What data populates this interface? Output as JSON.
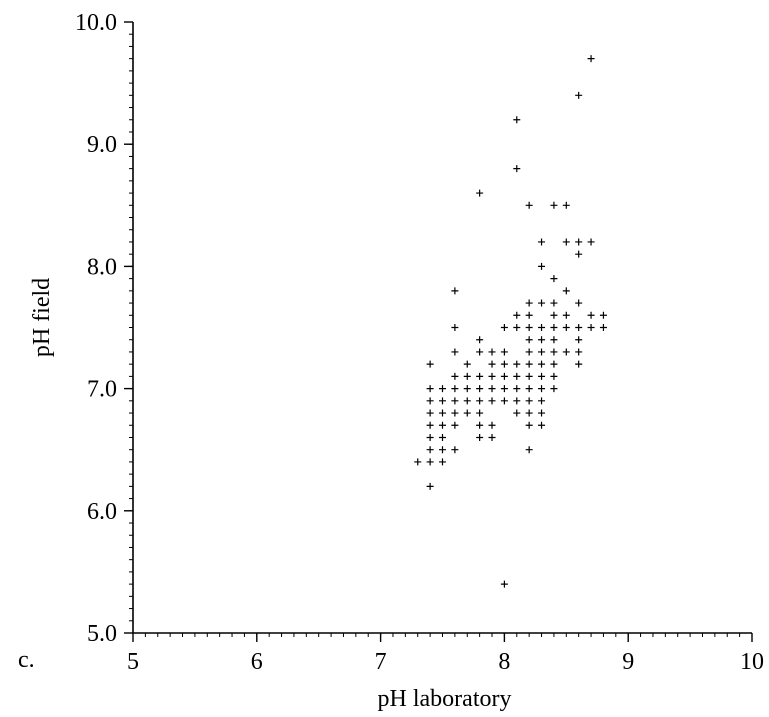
{
  "panel_label": "c.",
  "chart_data": {
    "type": "scatter",
    "xlabel": "pH laboratory",
    "ylabel": "pH field",
    "xlim": [
      5,
      10
    ],
    "ylim": [
      5.0,
      10.0
    ],
    "x_ticks": [
      5,
      6,
      7,
      8,
      9,
      10
    ],
    "x_tick_labels": [
      "5",
      "6",
      "7",
      "8",
      "9",
      "10"
    ],
    "y_ticks": [
      5.0,
      6.0,
      7.0,
      8.0,
      9.0,
      10.0
    ],
    "y_tick_labels": [
      "5.0",
      "6.0",
      "7.0",
      "8.0",
      "9.0",
      "10.0"
    ],
    "x_minor_step": 0.1,
    "y_minor_step": 0.1,
    "grid": false,
    "marker": "+",
    "color": "#000000",
    "points": [
      [
        8.7,
        9.7
      ],
      [
        8.6,
        9.4
      ],
      [
        8.1,
        9.2
      ],
      [
        8.1,
        8.8
      ],
      [
        7.8,
        8.6
      ],
      [
        8.2,
        8.5
      ],
      [
        8.4,
        8.5
      ],
      [
        8.5,
        8.5
      ],
      [
        8.3,
        8.2
      ],
      [
        8.5,
        8.2
      ],
      [
        8.6,
        8.2
      ],
      [
        8.7,
        8.2
      ],
      [
        8.6,
        8.1
      ],
      [
        8.3,
        8.0
      ],
      [
        8.4,
        7.9
      ],
      [
        7.6,
        7.8
      ],
      [
        8.5,
        7.8
      ],
      [
        8.2,
        7.7
      ],
      [
        8.3,
        7.7
      ],
      [
        8.4,
        7.7
      ],
      [
        8.6,
        7.7
      ],
      [
        8.1,
        7.6
      ],
      [
        8.2,
        7.6
      ],
      [
        8.4,
        7.6
      ],
      [
        8.5,
        7.6
      ],
      [
        8.7,
        7.6
      ],
      [
        8.8,
        7.6
      ],
      [
        7.6,
        7.5
      ],
      [
        8.0,
        7.5
      ],
      [
        8.1,
        7.5
      ],
      [
        8.2,
        7.5
      ],
      [
        8.3,
        7.5
      ],
      [
        8.4,
        7.5
      ],
      [
        8.5,
        7.5
      ],
      [
        8.6,
        7.5
      ],
      [
        8.7,
        7.5
      ],
      [
        8.8,
        7.5
      ],
      [
        7.8,
        7.4
      ],
      [
        8.2,
        7.4
      ],
      [
        8.3,
        7.4
      ],
      [
        8.4,
        7.4
      ],
      [
        8.6,
        7.4
      ],
      [
        7.6,
        7.3
      ],
      [
        7.8,
        7.3
      ],
      [
        7.9,
        7.3
      ],
      [
        8.0,
        7.3
      ],
      [
        8.2,
        7.3
      ],
      [
        8.3,
        7.3
      ],
      [
        8.4,
        7.3
      ],
      [
        8.5,
        7.3
      ],
      [
        8.6,
        7.3
      ],
      [
        7.4,
        7.2
      ],
      [
        7.7,
        7.2
      ],
      [
        7.9,
        7.2
      ],
      [
        8.0,
        7.2
      ],
      [
        8.1,
        7.2
      ],
      [
        8.2,
        7.2
      ],
      [
        8.3,
        7.2
      ],
      [
        8.4,
        7.2
      ],
      [
        8.6,
        7.2
      ],
      [
        7.6,
        7.1
      ],
      [
        7.7,
        7.1
      ],
      [
        7.8,
        7.1
      ],
      [
        7.9,
        7.1
      ],
      [
        8.0,
        7.1
      ],
      [
        8.1,
        7.1
      ],
      [
        8.2,
        7.1
      ],
      [
        8.3,
        7.1
      ],
      [
        8.4,
        7.1
      ],
      [
        7.4,
        7.0
      ],
      [
        7.5,
        7.0
      ],
      [
        7.6,
        7.0
      ],
      [
        7.7,
        7.0
      ],
      [
        7.8,
        7.0
      ],
      [
        7.9,
        7.0
      ],
      [
        8.0,
        7.0
      ],
      [
        8.1,
        7.0
      ],
      [
        8.2,
        7.0
      ],
      [
        8.3,
        7.0
      ],
      [
        8.4,
        7.0
      ],
      [
        7.4,
        6.9
      ],
      [
        7.5,
        6.9
      ],
      [
        7.6,
        6.9
      ],
      [
        7.7,
        6.9
      ],
      [
        7.8,
        6.9
      ],
      [
        7.9,
        6.9
      ],
      [
        8.0,
        6.9
      ],
      [
        8.1,
        6.9
      ],
      [
        8.2,
        6.9
      ],
      [
        8.3,
        6.9
      ],
      [
        7.4,
        6.8
      ],
      [
        7.5,
        6.8
      ],
      [
        7.6,
        6.8
      ],
      [
        7.7,
        6.8
      ],
      [
        7.8,
        6.8
      ],
      [
        8.1,
        6.8
      ],
      [
        8.2,
        6.8
      ],
      [
        8.3,
        6.8
      ],
      [
        7.4,
        6.7
      ],
      [
        7.5,
        6.7
      ],
      [
        7.6,
        6.7
      ],
      [
        7.8,
        6.7
      ],
      [
        7.9,
        6.7
      ],
      [
        8.2,
        6.7
      ],
      [
        8.3,
        6.7
      ],
      [
        7.4,
        6.6
      ],
      [
        7.5,
        6.6
      ],
      [
        7.8,
        6.6
      ],
      [
        7.9,
        6.6
      ],
      [
        7.4,
        6.5
      ],
      [
        7.5,
        6.5
      ],
      [
        7.6,
        6.5
      ],
      [
        8.2,
        6.5
      ],
      [
        7.3,
        6.4
      ],
      [
        7.4,
        6.4
      ],
      [
        7.5,
        6.4
      ],
      [
        7.4,
        6.2
      ],
      [
        8.0,
        5.4
      ]
    ]
  }
}
